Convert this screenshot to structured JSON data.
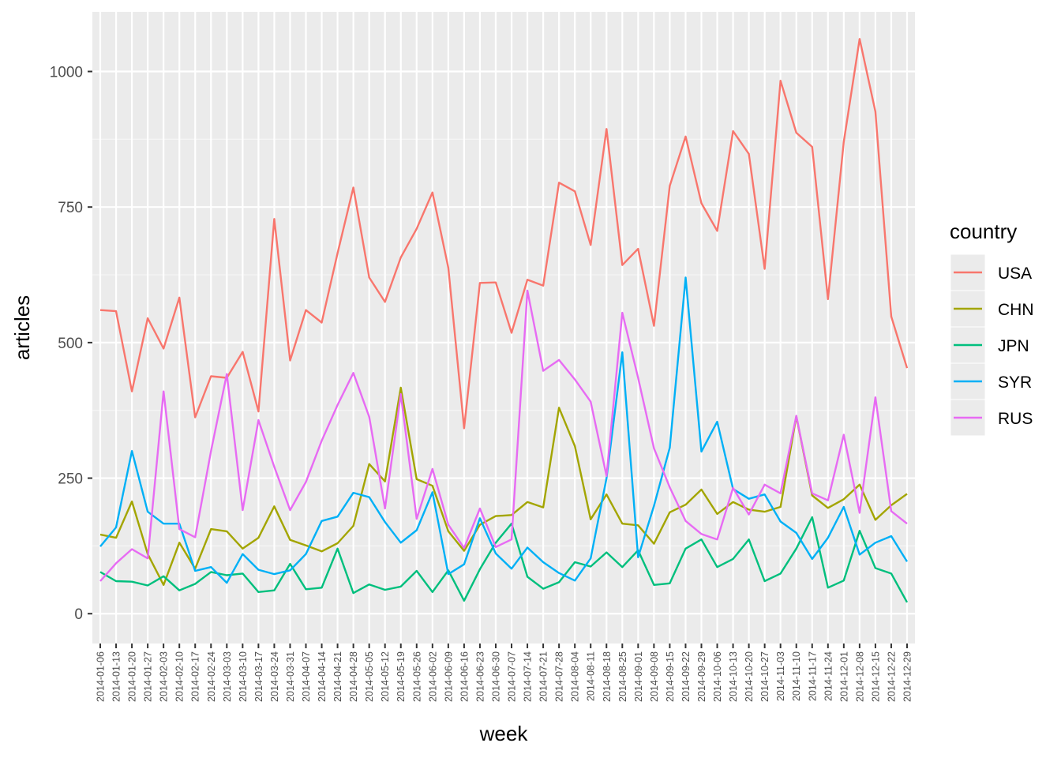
{
  "chart_data": {
    "type": "line",
    "title": "",
    "xlabel": "week",
    "ylabel": "articles",
    "ylim": [
      -55,
      1110
    ],
    "yticks": [
      0,
      250,
      500,
      750,
      1000
    ],
    "grid": true,
    "legend": {
      "title": "country",
      "placement": "right"
    },
    "categories": [
      "2014-01-06",
      "2014-01-13",
      "2014-01-20",
      "2014-01-27",
      "2014-02-03",
      "2014-02-10",
      "2014-02-17",
      "2014-02-24",
      "2014-03-03",
      "2014-03-10",
      "2014-03-17",
      "2014-03-24",
      "2014-03-31",
      "2014-04-07",
      "2014-04-14",
      "2014-04-21",
      "2014-04-28",
      "2014-05-05",
      "2014-05-12",
      "2014-05-19",
      "2014-05-26",
      "2014-06-02",
      "2014-06-09",
      "2014-06-16",
      "2014-06-23",
      "2014-06-30",
      "2014-07-07",
      "2014-07-14",
      "2014-07-21",
      "2014-07-28",
      "2014-08-04",
      "2014-08-11",
      "2014-08-18",
      "2014-08-25",
      "2014-09-01",
      "2014-09-08",
      "2014-09-15",
      "2014-09-22",
      "2014-09-29",
      "2014-10-06",
      "2014-10-13",
      "2014-10-20",
      "2014-10-27",
      "2014-11-03",
      "2014-11-10",
      "2014-11-17",
      "2014-11-24",
      "2014-12-01",
      "2014-12-08",
      "2014-12-15",
      "2014-12-22",
      "2014-12-29"
    ],
    "series": [
      {
        "name": "USA",
        "color": "#F8766D",
        "values": [
          560,
          558,
          410,
          545,
          489,
          583,
          362,
          438,
          435,
          483,
          373,
          728,
          467,
          560,
          537,
          665,
          786,
          620,
          575,
          657,
          710,
          777,
          638,
          342,
          610,
          611,
          518,
          616,
          605,
          795,
          779,
          680,
          894,
          643,
          673,
          531,
          789,
          880,
          757,
          706,
          890,
          848,
          636,
          983,
          887,
          861,
          580,
          870,
          1060,
          926,
          548,
          453
        ]
      },
      {
        "name": "CHN",
        "color": "#A3A500",
        "values": [
          146,
          140,
          207,
          110,
          53,
          131,
          83,
          156,
          152,
          120,
          140,
          198,
          136,
          126,
          115,
          130,
          162,
          276,
          244,
          417,
          248,
          236,
          152,
          116,
          164,
          180,
          182,
          206,
          196,
          380,
          309,
          174,
          220,
          166,
          163,
          129,
          187,
          201,
          229,
          184,
          206,
          192,
          188,
          197,
          364,
          218,
          195,
          211,
          238,
          173,
          200,
          221
        ]
      },
      {
        "name": "JPN",
        "color": "#00BF7D",
        "values": [
          77,
          60,
          59,
          52,
          69,
          43,
          55,
          77,
          71,
          74,
          40,
          43,
          92,
          45,
          48,
          120,
          38,
          54,
          44,
          50,
          79,
          40,
          80,
          24,
          82,
          131,
          166,
          68,
          46,
          58,
          95,
          87,
          113,
          86,
          117,
          53,
          56,
          120,
          137,
          86,
          101,
          137,
          60,
          74,
          120,
          178,
          48,
          61,
          153,
          84,
          74,
          21
        ]
      },
      {
        "name": "SYR",
        "color": "#00B0F6",
        "values": [
          124,
          159,
          300,
          188,
          166,
          166,
          79,
          86,
          57,
          110,
          81,
          73,
          80,
          110,
          171,
          179,
          223,
          215,
          169,
          131,
          154,
          224,
          73,
          91,
          176,
          111,
          83,
          122,
          95,
          75,
          61,
          102,
          250,
          482,
          104,
          199,
          306,
          620,
          299,
          354,
          230,
          212,
          220,
          170,
          149,
          101,
          140,
          197,
          109,
          131,
          143,
          96
        ]
      },
      {
        "name": "RUS",
        "color": "#E76BF3",
        "values": [
          60,
          93,
          119,
          102,
          410,
          156,
          141,
          300,
          442,
          191,
          357,
          271,
          191,
          243,
          319,
          385,
          444,
          363,
          194,
          405,
          175,
          267,
          164,
          121,
          194,
          123,
          137,
          596,
          448,
          468,
          432,
          391,
          254,
          555,
          435,
          305,
          233,
          171,
          147,
          137,
          232,
          183,
          238,
          222,
          365,
          222,
          209,
          330,
          186,
          399,
          189,
          166
        ]
      }
    ]
  }
}
